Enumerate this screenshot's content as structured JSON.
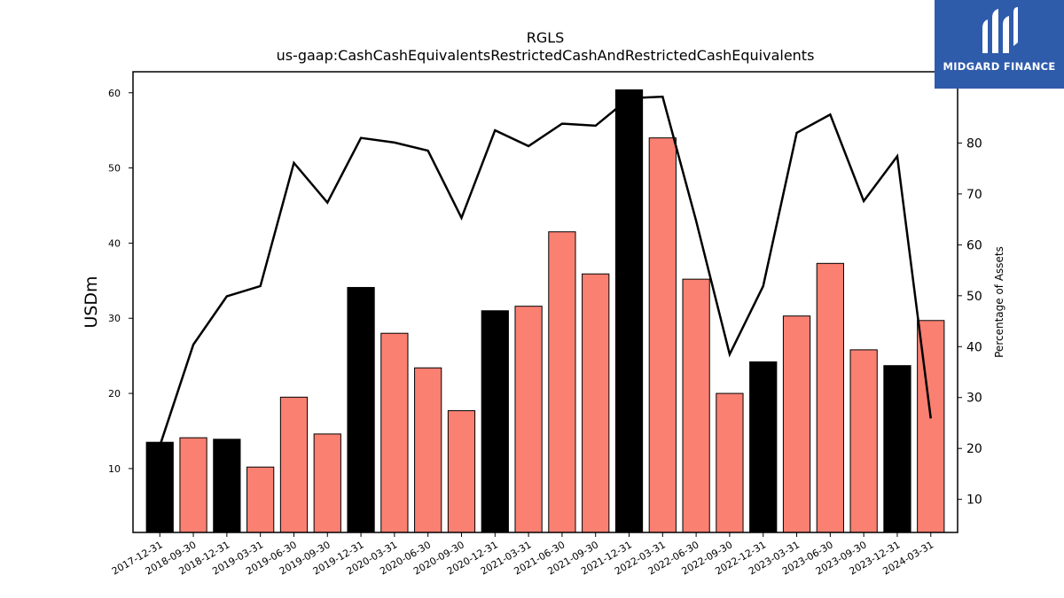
{
  "brand": {
    "name": "MIDGARD FINANCE",
    "bg_color": "#2f5bab"
  },
  "chart_data": {
    "type": "bar",
    "title": "RGLS",
    "subtitle": "us-gaap:CashCashEquivalentsRestrictedCashAndRestrictedCashEquivalents",
    "ylabel": "USDm",
    "y2label": "Percentage of Assets",
    "ylim": [
      1.5,
      62.8
    ],
    "y2lim": [
      3.5,
      94
    ],
    "yticks": [
      10,
      20,
      30,
      40,
      50,
      60
    ],
    "y2ticks": [
      10,
      20,
      30,
      40,
      50,
      60,
      70,
      80
    ],
    "categories": [
      "2017-12-31",
      "2018-09-30",
      "2018-12-31",
      "2019-03-31",
      "2019-06-30",
      "2019-09-30",
      "2019-12-31",
      "2020-03-31",
      "2020-06-30",
      "2020-09-30",
      "2020-12-31",
      "2021-03-31",
      "2021-06-30",
      "2021-09-30",
      "2021-12-31",
      "2022-03-31",
      "2022-06-30",
      "2022-09-30",
      "2022-12-31",
      "2023-03-31",
      "2023-06-30",
      "2023-09-30",
      "2023-12-31",
      "2024-03-31"
    ],
    "series": [
      {
        "type": "bar",
        "axis": "left",
        "values": [
          13.5,
          14.1,
          13.9,
          10.2,
          19.5,
          14.6,
          34.1,
          28.0,
          23.4,
          17.7,
          31.0,
          31.6,
          41.5,
          35.9,
          60.4,
          54.0,
          35.2,
          20.0,
          24.2,
          30.3,
          37.3,
          25.8,
          23.7,
          29.7
        ],
        "colors": [
          "#000000",
          "#fa8072",
          "#000000",
          "#fa8072",
          "#fa8072",
          "#fa8072",
          "#000000",
          "#fa8072",
          "#fa8072",
          "#fa8072",
          "#000000",
          "#fa8072",
          "#fa8072",
          "#fa8072",
          "#000000",
          "#fa8072",
          "#fa8072",
          "#fa8072",
          "#000000",
          "#fa8072",
          "#fa8072",
          "#fa8072",
          "#000000",
          "#fa8072"
        ]
      },
      {
        "type": "line",
        "axis": "right",
        "color": "#000000",
        "values": [
          20.5,
          40.4,
          49.9,
          51.9,
          76.1,
          68.3,
          81.0,
          80.1,
          78.5,
          65.3,
          82.5,
          79.4,
          83.8,
          83.4,
          88.8,
          89.1,
          64.7,
          38.5,
          51.9,
          82.0,
          85.6,
          68.6,
          77.4,
          25.9
        ]
      }
    ],
    "grid": false,
    "legend": "none"
  }
}
